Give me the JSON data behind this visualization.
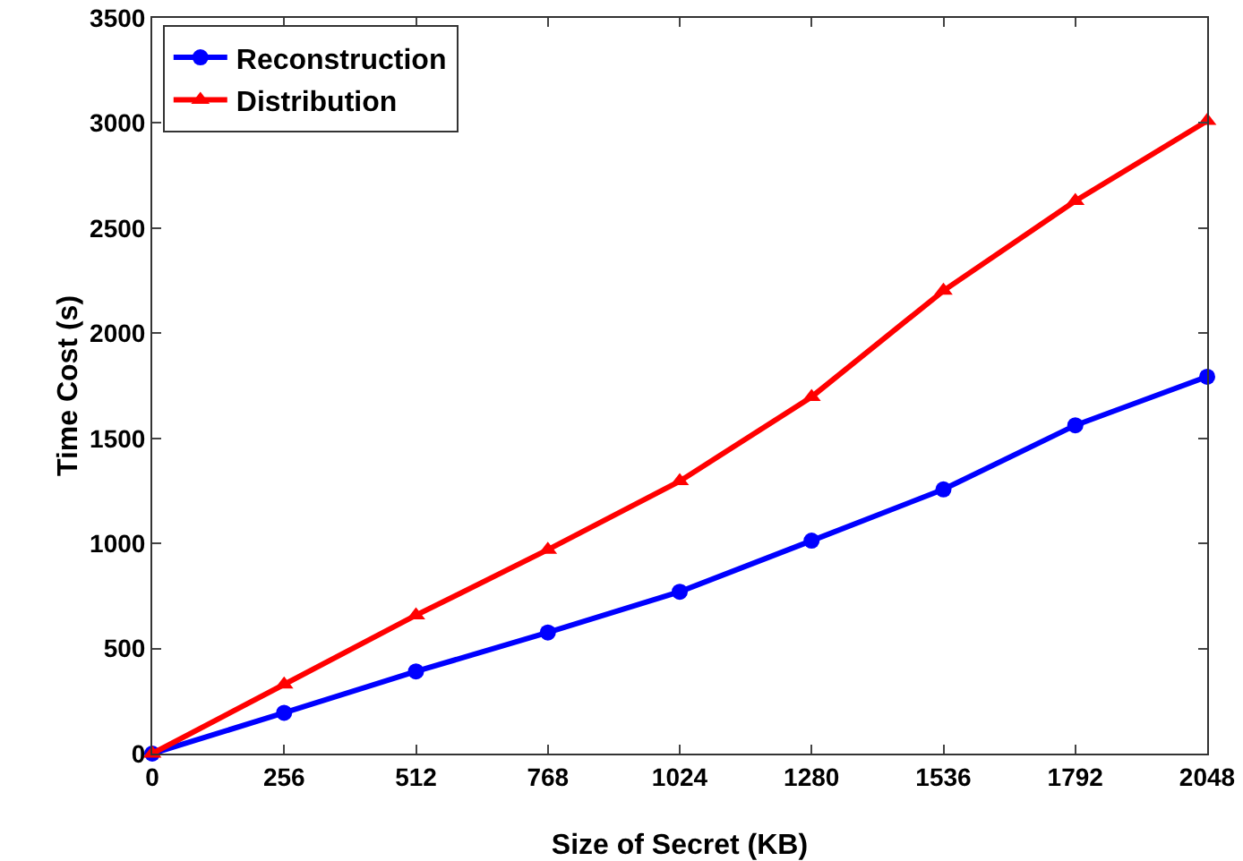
{
  "chart_data": {
    "type": "line",
    "xlabel": "Size of Secret (KB)",
    "ylabel": "Time Cost (s)",
    "x": [
      0,
      256,
      512,
      768,
      1024,
      1280,
      1536,
      1792,
      2048
    ],
    "series": [
      {
        "name": "Reconstruction",
        "color": "#0000ff",
        "marker": "circle",
        "values": [
          0,
          194,
          391,
          576,
          770,
          1013,
          1257,
          1562,
          1793
        ]
      },
      {
        "name": "Distribution",
        "color": "#ff0000",
        "marker": "triangle",
        "values": [
          0,
          329,
          658,
          970,
          1296,
          1697,
          2202,
          2629,
          3010
        ]
      }
    ],
    "xlim": [
      0,
      2048
    ],
    "xticks": [
      0,
      256,
      512,
      768,
      1024,
      1280,
      1536,
      1792,
      2048
    ],
    "ylim": [
      0,
      3500
    ],
    "yticks": [
      0,
      500,
      1000,
      1500,
      2000,
      2500,
      3000,
      3500
    ],
    "grid": false,
    "legend": "top left",
    "line_style": "solid"
  }
}
